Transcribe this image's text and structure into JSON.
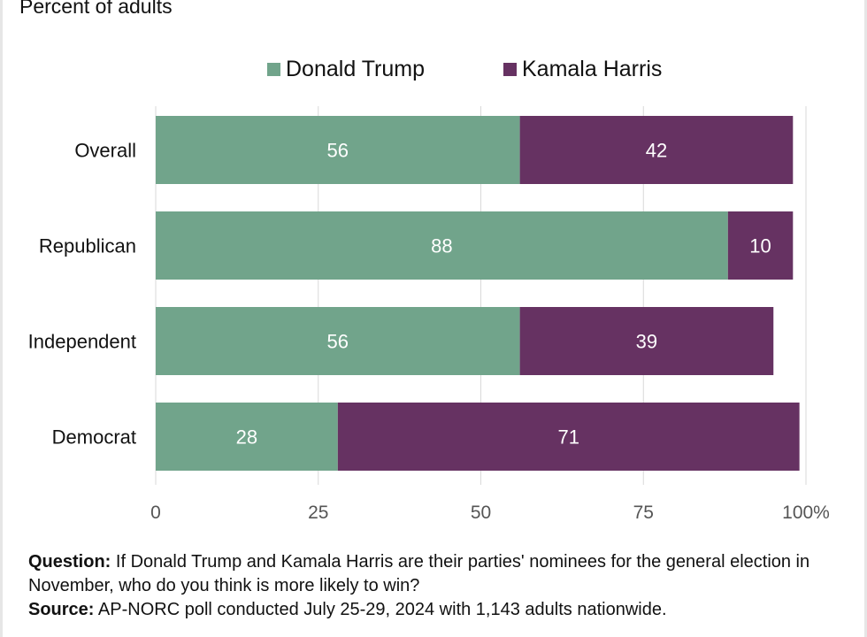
{
  "subtitle": "Percent of adults",
  "legend": [
    {
      "label": "Donald Trump",
      "color": "#71a48b"
    },
    {
      "label": "Kamala Harris",
      "color": "#663262"
    }
  ],
  "footnote": {
    "question_label": "Question:",
    "question_text": "If Donald Trump and Kamala Harris are their parties' nominees for the general election in November, who do you think is more likely to win?",
    "source_label": "Source:",
    "source_text": "AP-NORC poll conducted July 25-29, 2024 with 1,143 adults nationwide."
  },
  "chart_data": {
    "type": "bar",
    "orientation": "horizontal",
    "stacked": true,
    "title": "",
    "subtitle": "Percent of adults",
    "categories": [
      "Overall",
      "Republican",
      "Independent",
      "Democrat"
    ],
    "series": [
      {
        "name": "Donald Trump",
        "values": [
          56,
          88,
          56,
          28
        ],
        "color": "#71a48b"
      },
      {
        "name": "Kamala Harris",
        "values": [
          42,
          10,
          39,
          71
        ],
        "color": "#663262"
      }
    ],
    "xlim": [
      0,
      100
    ],
    "xticks": [
      {
        "value": 0,
        "label": "0"
      },
      {
        "value": 25,
        "label": "25"
      },
      {
        "value": 50,
        "label": "50"
      },
      {
        "value": 75,
        "label": "75"
      },
      {
        "value": 100,
        "label": "100%"
      }
    ],
    "grid": true,
    "legend_position": "top-center"
  }
}
